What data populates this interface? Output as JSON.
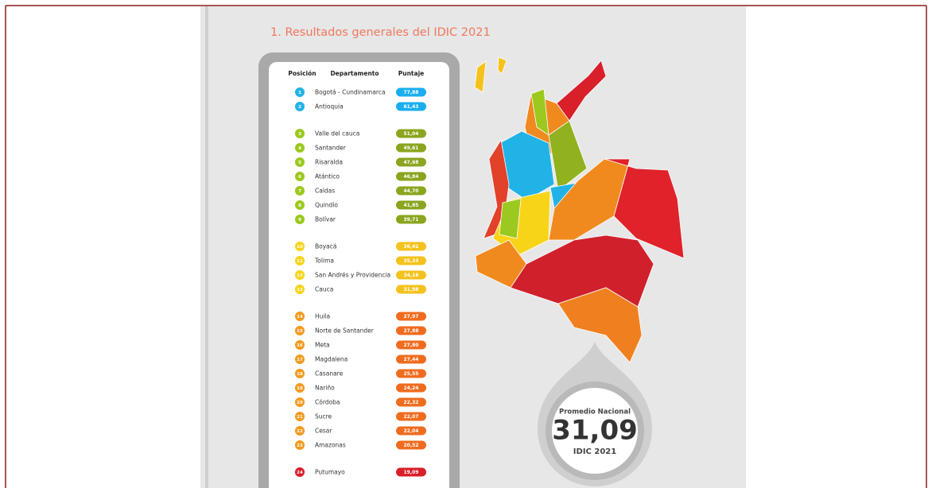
{
  "title": "1. Resultados generales del IDIC 2021",
  "table": {
    "headers": [
      "Posición",
      "Departamento",
      "Puntaje"
    ],
    "groups": [
      {
        "color": "#22b3e6",
        "pill": "#1aaeee",
        "rows": [
          [
            1,
            "Bogotá - Cundinamarca",
            "77,88"
          ],
          [
            2,
            "Antioquia",
            "61,43"
          ]
        ]
      },
      {
        "color": "#9bc91f",
        "pill": "#8aa51e",
        "rows": [
          [
            3,
            "Valle del cauca",
            "51,04"
          ],
          [
            4,
            "Santander",
            "49,61"
          ],
          [
            5,
            "Risaralda",
            "47,68"
          ],
          [
            6,
            "Atántico",
            "46,84"
          ],
          [
            7,
            "Caldas",
            "44,70"
          ],
          [
            8,
            "Quindío",
            "41,85"
          ],
          [
            9,
            "Bolívar",
            "39,71"
          ]
        ]
      },
      {
        "color": "#f7d418",
        "pill": "#f4c21c",
        "rows": [
          [
            10,
            "Boyacá",
            "36,42"
          ],
          [
            11,
            "Tolima",
            "35,33"
          ],
          [
            12,
            "San Andrés y Providencia",
            "34,16"
          ],
          [
            13,
            "Cauca",
            "31,98"
          ]
        ]
      },
      {
        "color": "#f29a1f",
        "pill": "#ef6c1f",
        "rows": [
          [
            14,
            "Huila",
            "27,97"
          ],
          [
            15,
            "Norte de Santander",
            "27,88"
          ],
          [
            16,
            "Meta",
            "27,80"
          ],
          [
            17,
            "Magdalena",
            "27,44"
          ],
          [
            18,
            "Casanare",
            "25,55"
          ],
          [
            19,
            "Nariño",
            "24,24"
          ],
          [
            20,
            "Córdoba",
            "22,32"
          ],
          [
            21,
            "Sucre",
            "22,07"
          ],
          [
            22,
            "Cesar",
            "22,04"
          ],
          [
            23,
            "Amazonas",
            "20,52"
          ]
        ]
      },
      {
        "color": "#d81f2a",
        "pill": "#d81f2a",
        "rows": [
          [
            24,
            "Putumayo",
            "19,09"
          ]
        ]
      }
    ]
  },
  "badge": {
    "label": "Promedio Nacional",
    "value": "31,09",
    "caption": "IDIC 2021"
  }
}
